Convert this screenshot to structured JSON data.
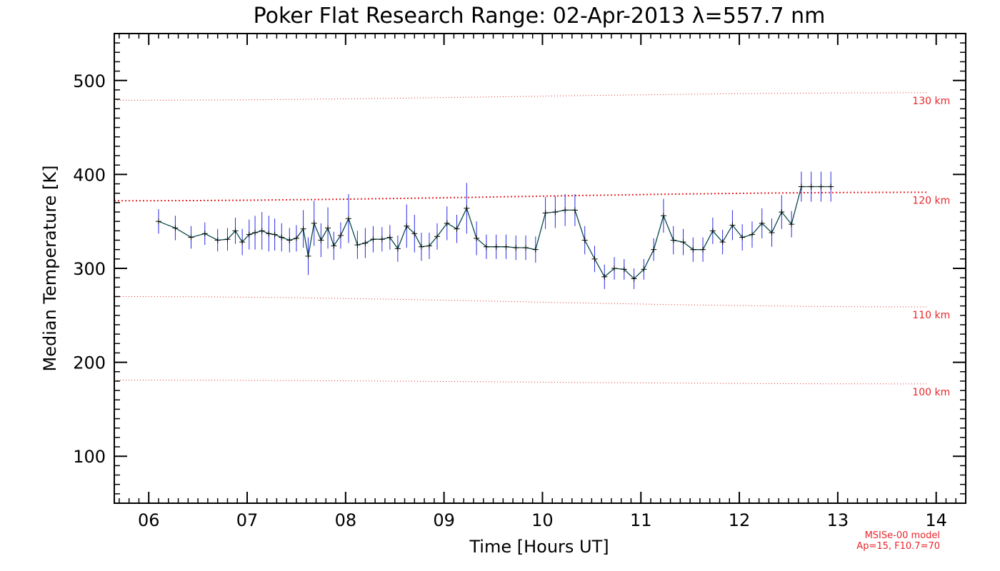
{
  "chart_data": {
    "type": "line",
    "title": "Poker Flat Research Range: 02-Apr-2013 λ=557.7 nm",
    "xlabel": "Time [Hours UT]",
    "ylabel": "Median Temperature [K]",
    "xlim": [
      5.65,
      14.3
    ],
    "ylim": [
      50,
      550
    ],
    "x_ticks": [
      6,
      7,
      8,
      9,
      10,
      11,
      12,
      13,
      14
    ],
    "x_tick_labels": [
      "06",
      "07",
      "08",
      "09",
      "10",
      "11",
      "12",
      "13",
      "14"
    ],
    "y_ticks": [
      100,
      200,
      300,
      400,
      500
    ],
    "y_tick_labels": [
      "100",
      "200",
      "300",
      "400",
      "500"
    ],
    "series": [
      {
        "name": "Median Temperature",
        "line_color": "#0b4a4a",
        "marker": "plus",
        "error_color": "#2a2ae8",
        "x": [
          6.1,
          6.27,
          6.43,
          6.57,
          6.7,
          6.8,
          6.88,
          6.95,
          7.02,
          7.08,
          7.15,
          7.22,
          7.28,
          7.35,
          7.43,
          7.5,
          7.57,
          7.62,
          7.68,
          7.75,
          7.82,
          7.88,
          7.95,
          8.03,
          8.12,
          8.2,
          8.28,
          8.37,
          8.45,
          8.53,
          8.62,
          8.7,
          8.77,
          8.85,
          8.93,
          9.03,
          9.13,
          9.23,
          9.33,
          9.43,
          9.53,
          9.63,
          9.73,
          9.83,
          9.93,
          10.03,
          10.13,
          10.23,
          10.33,
          10.43,
          10.53,
          10.63,
          10.73,
          10.83,
          10.93,
          11.03,
          11.13,
          11.23,
          11.33,
          11.43,
          11.53,
          11.63,
          11.73,
          11.83,
          11.93,
          12.03,
          12.13,
          12.23,
          12.33,
          12.43,
          12.53,
          12.63,
          12.73,
          12.83,
          12.93
        ],
        "y": [
          350,
          343,
          333,
          337,
          330,
          331,
          340,
          328,
          336,
          338,
          340,
          337,
          336,
          333,
          330,
          332,
          342,
          313,
          348,
          330,
          343,
          324,
          335,
          353,
          325,
          327,
          331,
          331,
          333,
          321,
          345,
          337,
          323,
          324,
          334,
          348,
          342,
          364,
          332,
          323,
          323,
          323,
          322,
          322,
          320,
          359,
          360,
          362,
          362,
          330,
          310,
          291,
          300,
          299,
          289,
          299,
          320,
          356,
          330,
          328,
          320,
          320,
          340,
          328,
          346,
          333,
          336,
          348,
          338,
          360,
          347,
          387,
          387,
          387,
          387
        ],
        "err": [
          13,
          13,
          12,
          12,
          12,
          12,
          14,
          14,
          16,
          18,
          20,
          19,
          17,
          15,
          13,
          14,
          20,
          20,
          24,
          18,
          22,
          15,
          14,
          26,
          15,
          16,
          14,
          13,
          13,
          14,
          23,
          20,
          15,
          14,
          14,
          18,
          15,
          27,
          18,
          13,
          13,
          13,
          13,
          13,
          14,
          17,
          17,
          17,
          17,
          15,
          14,
          13,
          12,
          11,
          11,
          11,
          12,
          18,
          15,
          14,
          13,
          13,
          14,
          13,
          16,
          14,
          14,
          16,
          15,
          18,
          14,
          16,
          16,
          16,
          16
        ]
      }
    ],
    "model_curves": [
      {
        "label": "130 km",
        "y_start": 479,
        "y_end": 487,
        "label_y": 130
      },
      {
        "label": "120 km",
        "y_start": 372,
        "y_end": 381,
        "label_y": 120
      },
      {
        "label": "110 km",
        "y_start": 270,
        "y_end": 259,
        "label_y": 110
      },
      {
        "label": "100 km",
        "y_start": 181,
        "y_end": 177,
        "label_y": 100
      }
    ],
    "model_color": "#e8262b",
    "grid": false,
    "footnote": [
      "MSISe-00 model",
      "Ap=15, F10.7=70"
    ]
  }
}
